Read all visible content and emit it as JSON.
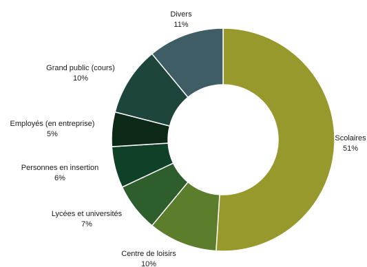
{
  "chart_data": {
    "type": "pie",
    "subtype": "donut",
    "categories": [
      "Scolaires",
      "Centre de loisirs",
      "Lycées et universités",
      "Personnes en insertion",
      "Employés (en entreprise)",
      "Grand public (cours)",
      "Divers"
    ],
    "values": [
      51,
      10,
      7,
      6,
      5,
      10,
      11
    ],
    "data_labels": [
      "51%",
      "10%",
      "7%",
      "6%",
      "5%",
      "10%",
      "11%"
    ],
    "colors": [
      "#98992c",
      "#5c7d2c",
      "#2e5e2c",
      "#0e4127",
      "#0b2916",
      "#1e453c",
      "#3e5d64"
    ],
    "legend": "none",
    "grid": false
  }
}
